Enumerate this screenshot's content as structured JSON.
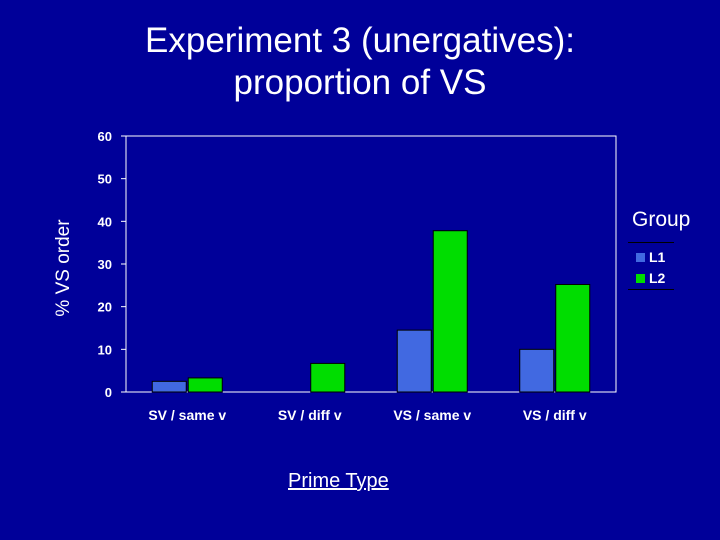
{
  "title_lines": [
    "Experiment 3 (unergatives):",
    "proportion of VS"
  ],
  "chart_data": {
    "type": "bar",
    "categories": [
      "SV / same v",
      "SV / diff v",
      "VS / same v",
      "VS / diff v"
    ],
    "series": [
      {
        "name": "L1",
        "values": [
          2.5,
          null,
          14.5,
          10
        ],
        "color": "#4169e1"
      },
      {
        "name": "L2",
        "values": [
          3.3,
          6.7,
          37.8,
          25.2
        ],
        "color": "#00dd00"
      }
    ],
    "yticks": [
      0,
      10,
      20,
      30,
      40,
      50,
      60
    ],
    "ylim": [
      0,
      60
    ],
    "ylabel": "% VS order",
    "xlabel": "Prime Type",
    "legend_title": "Group",
    "legend_position": "right",
    "grid": false
  }
}
